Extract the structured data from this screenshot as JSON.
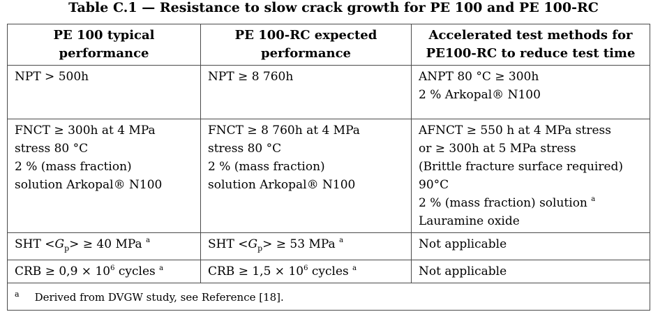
{
  "table_title": "Table C.1 — Resistance to slow crack growth for PE 100 and PE 100-RC",
  "headers": [
    [
      "PE 100 typical",
      "performance"
    ],
    [
      "PE 100-RC expected",
      "performance"
    ],
    [
      "Accelerated test methods for",
      "PE100-RC to reduce test time"
    ]
  ],
  "rows": [
    {
      "pe100": [
        "NPT > 500h"
      ],
      "pe100rc": [
        "NPT ≥ 8 760h"
      ],
      "accel": [
        "ANPT 80 °C ≥ 300h",
        "2 % Arkopal® N100"
      ]
    },
    {
      "pe100": [
        "FNCT ≥ 300h at 4 MPa",
        "stress 80 °C",
        "2 % (mass fraction)",
        "solution Arkopal® N100"
      ],
      "pe100rc": [
        "FNCT ≥ 8 760h at 4 MPa",
        "stress 80 °C",
        "2 % (mass fraction)",
        "solution Arkopal® N100"
      ],
      "accel": [
        "AFNCT ≥ 550 h at 4 MPa stress",
        "or ≥ 300h at 5 MPa stress",
        "(Brittle fracture surface required)",
        "90°C",
        "2 % (mass fraction) solution",
        "Lauramine oxide"
      ]
    }
  ],
  "sht": {
    "pe100_prefix": "SHT <",
    "gp_letter": "G",
    "gp_sub": "p",
    "pe100_suffix": "> ≥ 40 MPa",
    "pe100rc_prefix": "SHT <",
    "pe100rc_suffix": "> ≥ 53 MPa",
    "accel": "Not applicable"
  },
  "crb": {
    "pe100_prefix": "CRB ≥ 0,9 × 10",
    "pe100rc_prefix": "CRB ≥ 1,5 × 10",
    "exponent": "6",
    "suffix": " cycles",
    "accel": "Not applicable"
  },
  "footnote_marker": "a",
  "footnote_text": "Derived from DVGW study, see Reference [18]."
}
